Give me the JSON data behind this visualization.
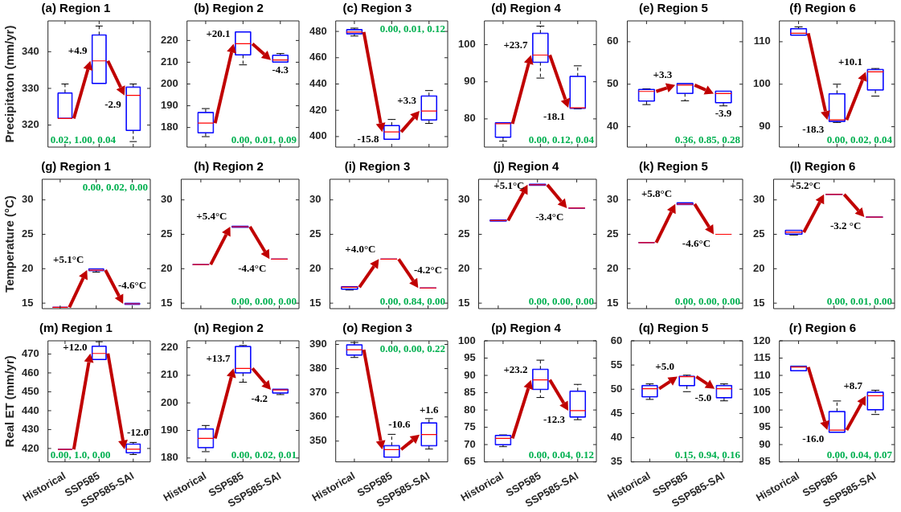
{
  "chart_data": [
    {
      "type": "box",
      "title": "(a) Region 1",
      "ylabel": "Precipitaton (mm/yr)",
      "categories": [
        "Historical",
        "SSP585",
        "SSP585-SAI"
      ],
      "ylim": [
        314,
        348.4
      ],
      "yticks": [
        320,
        330,
        340
      ],
      "tick_labels": "y",
      "series": [
        {
          "color": "#0000ff",
          "boxes": [
            {
              "low": 321.8,
              "q1": 321.8,
              "median": 321.8,
              "q3": 328.8,
              "high": 331.2
            },
            {
              "low": 331.3,
              "q1": 331.3,
              "median": 337.5,
              "q3": 344.6,
              "high": 347.0
            },
            {
              "low": 315.5,
              "q1": 318.5,
              "median": 328.1,
              "q3": 330.4,
              "high": 331.2
            }
          ]
        }
      ],
      "annotations": [
        {
          "text": "+4.9",
          "x": "SSP585",
          "y": 337.5
        },
        {
          "text": "-2.9",
          "x": "SSP585-SAI",
          "y": 328.1
        },
        "0.02, 1.00, 0.04"
      ]
    },
    {
      "type": "box",
      "title": "(b) Region 2",
      "categories": [
        "Historical",
        "SSP585",
        "SSP585-SAI"
      ],
      "ylim": [
        171,
        229
      ],
      "yticks": [
        180,
        190,
        200,
        210,
        220
      ],
      "tick_labels": "y",
      "series": [
        {
          "color": "#0000ff",
          "boxes": [
            {
              "low": 175.8,
              "q1": 177.5,
              "median": 182,
              "q3": 187,
              "high": 188.7
            },
            {
              "low": 208.8,
              "q1": 213.3,
              "median": 218.5,
              "q3": 224,
              "high": 224
            },
            {
              "low": 210,
              "q1": 210,
              "median": 211,
              "q3": 213.3,
              "high": 214
            }
          ]
        }
      ],
      "annotations": [
        {
          "text": "+20.1",
          "x": "SSP585",
          "y": 218.5
        },
        {
          "text": "-4.3",
          "x": "SSP585-SAI",
          "y": 211
        },
        "0.00, 0.01, 0.09"
      ]
    },
    {
      "type": "box",
      "title": "(c) Region 3",
      "categories": [
        "Historical",
        "SSP585",
        "SSP585-SAI"
      ],
      "ylim": [
        392,
        488
      ],
      "yticks": [
        400,
        420,
        440,
        460,
        480
      ],
      "tick_labels": "y",
      "series": [
        {
          "color": "#0000ff",
          "boxes": [
            {
              "low": 476.5,
              "q1": 478,
              "median": 479.5,
              "q3": 481.5,
              "high": 482.5
            },
            {
              "low": 397.8,
              "q1": 397.8,
              "median": 403.5,
              "q3": 408.5,
              "high": 413
            },
            {
              "low": 410,
              "q1": 412.5,
              "median": 419.5,
              "q3": 431,
              "high": 435
            }
          ]
        }
      ],
      "annotations": [
        {
          "text": "-15.8",
          "x": "SSP585",
          "y": 403.5
        },
        {
          "text": "+3.3",
          "x": "SSP585-SAI",
          "y": 419.5
        },
        "0.00, 0.01, 0.12"
      ]
    },
    {
      "type": "box",
      "title": "(d) Region 4",
      "categories": [
        "Historical",
        "SSP585",
        "SSP585-SAI"
      ],
      "ylim": [
        72.4,
        106.4
      ],
      "yticks": [
        80,
        90,
        100
      ],
      "tick_labels": "y",
      "series": [
        {
          "color": "#0000ff",
          "boxes": [
            {
              "low": 74,
              "q1": 75,
              "median": 78.7,
              "q3": 79,
              "high": 79
            },
            {
              "low": 91,
              "q1": 95.2,
              "median": 97.2,
              "q3": 103.1,
              "high": 105
            },
            {
              "low": 82.7,
              "q1": 82.8,
              "median": 83,
              "q3": 91.5,
              "high": 94.3
            }
          ]
        }
      ],
      "annotations": [
        {
          "text": "+23.7",
          "x": "SSP585",
          "y": 97.2
        },
        {
          "text": "-18.1",
          "x": "SSP585-SAI",
          "y": 83
        },
        "0.00, 0.12, 0.04"
      ]
    },
    {
      "type": "box",
      "title": "(e) Region 5",
      "categories": [
        "Historical",
        "SSP585",
        "SSP585-SAI"
      ],
      "ylim": [
        35.2,
        64.9
      ],
      "yticks": [
        40,
        50,
        60
      ],
      "tick_labels": "y",
      "series": [
        {
          "color": "#0000ff",
          "boxes": [
            {
              "low": 45.2,
              "q1": 46,
              "median": 48.3,
              "q3": 48.8,
              "high": 48.9
            },
            {
              "low": 46.1,
              "q1": 47.8,
              "median": 49.8,
              "q3": 50.2,
              "high": 50.2
            },
            {
              "low": 44.9,
              "q1": 45.6,
              "median": 47.8,
              "q3": 48.4,
              "high": 48.4
            }
          ]
        }
      ],
      "annotations": [
        {
          "text": "+3.3",
          "x": "SSP585",
          "y": 49.8
        },
        {
          "text": "-3.9",
          "x": "SSP585-SAI",
          "y": 47.8
        },
        "0.36, 0.85, 0.28"
      ]
    },
    {
      "type": "box",
      "title": "(f) Region 6",
      "categories": [
        "Historical",
        "SSP585",
        "SSP585-SAI"
      ],
      "ylim": [
        85.2,
        114.9
      ],
      "yticks": [
        90,
        100,
        110
      ],
      "tick_labels": "y",
      "series": [
        {
          "color": "#0000ff",
          "boxes": [
            {
              "low": 111.5,
              "q1": 111.5,
              "median": 112,
              "q3": 113.1,
              "high": 113.5
            },
            {
              "low": 91,
              "q1": 91.2,
              "median": 91.6,
              "q3": 97.8,
              "high": 100
            },
            {
              "low": 97.2,
              "q1": 98.6,
              "median": 102.9,
              "q3": 103.5,
              "high": 103.7
            }
          ]
        }
      ],
      "annotations": [
        {
          "text": "-18.3",
          "x": "SSP585",
          "y": 91.6
        },
        {
          "text": "+10.1",
          "x": "SSP585-SAI",
          "y": 102.9
        },
        "0.00, 0.02, 0.04"
      ]
    },
    {
      "type": "box",
      "title": "(g) Region 1",
      "ylabel": "Temperature (°C)",
      "categories": [
        "Historical",
        "SSP585",
        "SSP585-SAI"
      ],
      "ylim": [
        14.2,
        33
      ],
      "yticks": [
        15,
        20,
        25,
        30
      ],
      "tick_labels": "y",
      "series": [
        {
          "color": "#0000ff",
          "boxes": [
            {
              "low": 14.4,
              "q1": 14.4,
              "median": 14.4,
              "q3": 14.4,
              "high": 14.4
            },
            {
              "low": 19.5,
              "q1": 19.7,
              "median": 19.8,
              "q3": 20.0,
              "high": 20.0
            },
            {
              "low": 14.8,
              "q1": 14.8,
              "median": 14.9,
              "q3": 15.0,
              "high": 15.0
            }
          ]
        }
      ],
      "annotations": [
        {
          "text": "+5.1°C",
          "x": "SSP585",
          "y": 19.8
        },
        {
          "text": "-4.6°C",
          "x": "SSP585-SAI",
          "y": 14.9
        },
        "0.00, 0.02, 0.00"
      ]
    },
    {
      "type": "box",
      "title": "(h) Region 2",
      "categories": [
        "Historical",
        "SSP585",
        "SSP585-SAI"
      ],
      "ylim": [
        14.2,
        33
      ],
      "yticks": [
        15,
        20,
        25,
        30
      ],
      "tick_labels": "y",
      "series": [
        {
          "color": "#0000ff",
          "boxes": [
            {
              "low": 20.6,
              "q1": 20.6,
              "median": 20.6,
              "q3": 20.6,
              "high": 20.6
            },
            {
              "low": 26.0,
              "q1": 26.0,
              "median": 26.1,
              "q3": 26.2,
              "high": 26.2
            },
            {
              "low": 21.4,
              "q1": 21.4,
              "median": 21.4,
              "q3": 21.4,
              "high": 21.4
            }
          ]
        }
      ],
      "annotations": [
        {
          "text": "+5.4°C",
          "x": "SSP585",
          "y": 26.1
        },
        {
          "text": "-4.4°C",
          "x": "SSP585-SAI",
          "y": 21.4
        },
        "0.00, 0.00, 0.00"
      ]
    },
    {
      "type": "box",
      "title": "(i) Region 3",
      "categories": [
        "Historical",
        "SSP585",
        "SSP585-SAI"
      ],
      "ylim": [
        14.2,
        33
      ],
      "yticks": [
        15,
        20,
        25,
        30
      ],
      "tick_labels": "y",
      "series": [
        {
          "color": "#0000ff",
          "boxes": [
            {
              "low": 16.9,
              "q1": 17.0,
              "median": 17.3,
              "q3": 17.4,
              "high": 17.4
            },
            {
              "low": 21.4,
              "q1": 21.4,
              "median": 21.4,
              "q3": 21.4,
              "high": 21.4
            },
            {
              "low": 17.2,
              "q1": 17.2,
              "median": 17.2,
              "q3": 17.2,
              "high": 17.2
            }
          ]
        }
      ],
      "annotations": [
        {
          "text": "+4.0°C",
          "x": "SSP585",
          "y": 21.4
        },
        {
          "text": "-4.2°C",
          "x": "SSP585-SAI",
          "y": 17.2
        },
        "0.00, 0.84, 0.00"
      ]
    },
    {
      "type": "box",
      "title": "(j) Region 4",
      "categories": [
        "Historical",
        "SSP585",
        "SSP585-SAI"
      ],
      "ylim": [
        14.2,
        33
      ],
      "yticks": [
        15,
        20,
        25,
        30
      ],
      "tick_labels": "y",
      "series": [
        {
          "color": "#0000ff",
          "boxes": [
            {
              "low": 26.9,
              "q1": 26.9,
              "median": 27.0,
              "q3": 27.1,
              "high": 27.1
            },
            {
              "low": 32.1,
              "q1": 32.1,
              "median": 32.2,
              "q3": 32.3,
              "high": 32.3
            },
            {
              "low": 28.8,
              "q1": 28.8,
              "median": 28.8,
              "q3": 28.8,
              "high": 28.8
            }
          ]
        }
      ],
      "annotations": [
        {
          "text": "+5.1°C",
          "x": "SSP585",
          "y": 32.2
        },
        {
          "text": "-3.4°C",
          "x": "SSP585-SAI",
          "y": 28.8
        },
        "0.00, 0.00, 0.00"
      ]
    },
    {
      "type": "box",
      "title": "(k) Region 5",
      "categories": [
        "Historical",
        "SSP585",
        "SSP585-SAI"
      ],
      "ylim": [
        14.2,
        33
      ],
      "yticks": [
        15,
        20,
        25,
        30
      ],
      "tick_labels": "y",
      "series": [
        {
          "color": "#0000ff",
          "boxes": [
            {
              "low": 23.8,
              "q1": 23.8,
              "median": 23.8,
              "q3": 23.8,
              "high": 23.8
            },
            {
              "low": 29.3,
              "q1": 29.3,
              "median": 29.4,
              "q3": 29.6,
              "high": 29.6
            },
            {
              "low": 25.0,
              "q1": 25.0,
              "median": 25.0,
              "q3": 25.0,
              "high": 25.0
            }
          ]
        }
      ],
      "annotations": [
        {
          "text": "+5.8°C",
          "x": "SSP585",
          "y": 29.4
        },
        {
          "text": "-4.6°C",
          "x": "SSP585-SAI",
          "y": 25.0
        },
        "0.00, 0.00, 0.00"
      ]
    },
    {
      "type": "box",
      "title": "(l) Region 6",
      "categories": [
        "Historical",
        "SSP585",
        "SSP585-SAI"
      ],
      "ylim": [
        14.2,
        33
      ],
      "yticks": [
        15,
        20,
        25,
        30
      ],
      "tick_labels": "y",
      "series": [
        {
          "color": "#0000ff",
          "boxes": [
            {
              "low": 24.9,
              "q1": 25.0,
              "median": 25.3,
              "q3": 25.6,
              "high": 25.6
            },
            {
              "low": 30.8,
              "q1": 30.8,
              "median": 30.8,
              "q3": 30.8,
              "high": 30.8
            },
            {
              "low": 27.5,
              "q1": 27.5,
              "median": 27.5,
              "q3": 27.5,
              "high": 27.5
            }
          ]
        }
      ],
      "annotations": [
        {
          "text": "+5.2°C",
          "x": "SSP585",
          "y": 30.8
        },
        {
          "text": "-3.2 °C",
          "x": "SSP585-SAI",
          "y": 27.5
        },
        "0.00, 0.01, 0.00"
      ]
    },
    {
      "type": "box",
      "title": "(m) Region 1",
      "ylabel": "Real ET (mm/yr)",
      "categories": [
        "Historical",
        "SSP585",
        "SSP585-SAI"
      ],
      "ylim": [
        412.9,
        477
      ],
      "yticks": [
        420,
        430,
        440,
        450,
        460,
        470
      ],
      "series": [
        {
          "color": "#0000ff",
          "boxes": [
            {
              "low": 419.5,
              "q1": 419.5,
              "median": 419.5,
              "q3": 419.5,
              "high": 419.5
            },
            {
              "low": 467.0,
              "q1": 467.0,
              "median": 470.3,
              "q3": 474.2,
              "high": 476.5
            },
            {
              "low": 416.8,
              "q1": 417.6,
              "median": 419.6,
              "q3": 422.4,
              "high": 423.2
            }
          ]
        }
      ],
      "annotations": [
        {
          "text": "+12.0",
          "x": "SSP585",
          "y": 470.3
        },
        {
          "text": "-12.0",
          "x": "SSP585-SAI",
          "y": 419.6
        },
        "0.00, 1.0, 0.00"
      ]
    },
    {
      "type": "box",
      "title": "(n) Region 2",
      "categories": [
        "Historical",
        "SSP585",
        "SSP585-SAI"
      ],
      "ylim": [
        178.6,
        222.5
      ],
      "yticks": [
        180,
        190,
        200,
        210,
        220
      ],
      "series": [
        {
          "color": "#0000ff",
          "boxes": [
            {
              "low": 182.3,
              "q1": 183.7,
              "median": 187.1,
              "q3": 190.6,
              "high": 191.8
            },
            {
              "low": 207.5,
              "q1": 210.8,
              "median": 212.5,
              "q3": 220.5,
              "high": 220.8
            },
            {
              "low": 203.0,
              "q1": 203.5,
              "median": 204.7,
              "q3": 205.0,
              "high": 205.0
            }
          ]
        }
      ],
      "annotations": [
        {
          "text": "+13.7",
          "x": "SSP585",
          "y": 212.5
        },
        {
          "text": "-4.2",
          "x": "SSP585-SAI",
          "y": 204.7
        },
        "0.00, 0.02, 0.01"
      ]
    },
    {
      "type": "box",
      "title": "(o) Region 3",
      "categories": [
        "Historical",
        "SSP585",
        "SSP585-SAI"
      ],
      "ylim": [
        341.4,
        391.5
      ],
      "yticks": [
        350,
        360,
        370,
        380,
        390
      ],
      "series": [
        {
          "color": "#0000ff",
          "boxes": [
            {
              "low": 384.6,
              "q1": 385.5,
              "median": 387.8,
              "q3": 389.9,
              "high": 390.8
            },
            {
              "low": 343.3,
              "q1": 343.3,
              "median": 346.5,
              "q3": 348.2,
              "high": 352.8
            },
            {
              "low": 346.7,
              "q1": 348.0,
              "median": 352.7,
              "q3": 357.6,
              "high": 359.3
            }
          ]
        }
      ],
      "annotations": [
        {
          "text": "-10.6",
          "x": "SSP585",
          "y": 346.5
        },
        {
          "text": "+1.6",
          "x": "SSP585-SAI",
          "y": 352.7
        },
        "0.00, 0.00, 0.22"
      ]
    },
    {
      "type": "box",
      "title": "(p) Region 4",
      "categories": [
        "Historical",
        "SSP585",
        "SSP585-SAI"
      ],
      "ylim": [
        65,
        100
      ],
      "yticks": [
        65,
        70,
        75,
        80,
        85,
        90,
        95,
        100
      ],
      "series": [
        {
          "color": "#0000ff",
          "boxes": [
            {
              "low": 69.4,
              "q1": 69.9,
              "median": 71.8,
              "q3": 72.7,
              "high": 72.8
            },
            {
              "low": 83.6,
              "q1": 85.9,
              "median": 88.7,
              "q3": 91.8,
              "high": 94.4
            },
            {
              "low": 77.2,
              "q1": 77.9,
              "median": 79.8,
              "q3": 85.5,
              "high": 87.4
            }
          ]
        }
      ],
      "annotations": [
        {
          "text": "+23.2",
          "x": "SSP585",
          "y": 88.7
        },
        {
          "text": "-12.3",
          "x": "SSP585-SAI",
          "y": 79.8
        },
        "0.00, 0.04, 0.12"
      ]
    },
    {
      "type": "box",
      "title": "(q) Region 5",
      "categories": [
        "Historical",
        "SSP585",
        "SSP585-SAI"
      ],
      "ylim": [
        35,
        60
      ],
      "yticks": [
        35,
        40,
        45,
        50,
        55,
        60
      ],
      "series": [
        {
          "color": "#0000ff",
          "boxes": [
            {
              "low": 47.9,
              "q1": 48.4,
              "median": 50.1,
              "q3": 50.8,
              "high": 51.1
            },
            {
              "low": 49.5,
              "q1": 50.7,
              "median": 52.6,
              "q3": 52.7,
              "high": 52.9
            },
            {
              "low": 47.6,
              "q1": 48.2,
              "median": 50.1,
              "q3": 50.8,
              "high": 51.1
            }
          ]
        }
      ],
      "annotations": [
        {
          "text": "+5.0",
          "x": "SSP585",
          "y": 52.6
        },
        {
          "text": "-5.0",
          "x": "SSP585-SAI",
          "y": 50.1
        },
        "0.15, 0.94, 0.16"
      ]
    },
    {
      "type": "box",
      "title": "(r) Region 6",
      "categories": [
        "Historical",
        "SSP585",
        "SSP585-SAI"
      ],
      "ylim": [
        85,
        120
      ],
      "yticks": [
        85,
        90,
        95,
        100,
        105,
        110,
        115,
        120
      ],
      "series": [
        {
          "color": "#0000ff",
          "boxes": [
            {
              "low": 111.3,
              "q1": 111.3,
              "median": 112.4,
              "q3": 112.7,
              "high": 112.7
            },
            {
              "low": 93.5,
              "q1": 93.5,
              "median": 94.2,
              "q3": 99.6,
              "high": 102.6
            },
            {
              "low": 98.7,
              "q1": 100.0,
              "median": 104.1,
              "q3": 105.2,
              "high": 105.7
            }
          ]
        }
      ],
      "annotations": [
        {
          "text": "-16.0",
          "x": "SSP585",
          "y": 94.2
        },
        {
          "text": "+8.7",
          "x": "SSP585-SAI",
          "y": 104.1
        },
        "0.00, 0.04, 0.07"
      ]
    }
  ]
}
